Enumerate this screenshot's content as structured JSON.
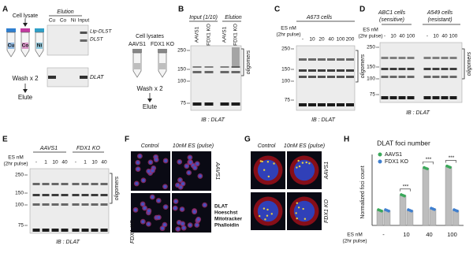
{
  "panels": {
    "A": {
      "letter": "A",
      "lysate": "Cell lysate",
      "tubes": [
        "Cu",
        "Co",
        "Ni"
      ],
      "wash": "Wash x 2",
      "elute": "Elute",
      "elution": "Elution",
      "lanes": [
        "Cu",
        "Co",
        "Ni",
        "Input"
      ],
      "bands": [
        "Lip-DLST",
        "DLST",
        "DLAT"
      ],
      "lysates2": "Cell lysates",
      "tubes2": [
        "AAVS1",
        "FDX1 KO"
      ],
      "wash2": "Wash x 2",
      "elute2": "Elute"
    },
    "B": {
      "letter": "B",
      "input": "Input (1/10)",
      "elution": "Elution",
      "lanes": [
        "AAVS1",
        "FDX1 KO",
        "AAVS1",
        "FDX1 KO"
      ],
      "mw": [
        "250",
        "150",
        "100",
        "75"
      ],
      "bracket": "oligomers",
      "ib": "IB : DLAT"
    },
    "C": {
      "letter": "C",
      "cells": "A673 cells",
      "es": "ES nM",
      "pulse": "(2hr pulse)",
      "lanes": [
        "-",
        "10",
        "20",
        "40",
        "100",
        "200"
      ],
      "mw": [
        "250",
        "150",
        "100",
        "75"
      ],
      "bracket": "oligomers",
      "ib": "IB : DLAT"
    },
    "D": {
      "letter": "D",
      "cells1": "ABC1 cells",
      "note1": "(sensitive)",
      "cells2": "A549 cells",
      "note2": "(resistant)",
      "es": "ES nM",
      "pulse": "(2hr pulse)",
      "lanes": [
        "-",
        "10",
        "40",
        "100",
        "-",
        "10",
        "40",
        "100"
      ],
      "mw": [
        "250",
        "150",
        "100",
        "75"
      ],
      "bracket": "oligomers",
      "ib": "IB : DLAT"
    },
    "E": {
      "letter": "E",
      "group1": "AAVS1",
      "group2": "FDX1 KO",
      "es": "ES nM",
      "pulse": "(2hr pulse)",
      "lanes": [
        "-",
        "1",
        "10",
        "40",
        "-",
        "1",
        "10",
        "40"
      ],
      "mw": [
        "250",
        "150",
        "100",
        "75"
      ],
      "bracket": "oligomers",
      "ib": "IB : DLAT"
    },
    "F": {
      "letter": "F",
      "cols": [
        "Control",
        "10nM ES (pulse)"
      ],
      "rows": [
        "AAVS1",
        "FDX1 KO"
      ],
      "legend": [
        "DLAT",
        "Hoeschst",
        "Mitotracker",
        "Phalloidin"
      ]
    },
    "G": {
      "letter": "G",
      "cols": [
        "Control",
        "10nM ES (pulse)"
      ],
      "rows": [
        "AAVS1",
        "FDX1 KO"
      ]
    },
    "H": {
      "letter": "H",
      "title": "DLAT foci number",
      "ylabel": "Normalized foci count",
      "es": "ES nM",
      "pulse": "(2hr pulse)",
      "categories": [
        "-",
        "10",
        "40",
        "100"
      ],
      "series": [
        {
          "name": "AAVS1",
          "color": "#3aa85a",
          "values": [
            1,
            2,
            3.8,
            3.9
          ]
        },
        {
          "name": "FDX1 KO",
          "color": "#3f7fcf",
          "values": [
            1,
            1,
            1.1,
            1
          ]
        }
      ],
      "ylim": [
        0,
        4.5
      ],
      "sig": [
        "***",
        "***",
        "***"
      ]
    }
  }
}
